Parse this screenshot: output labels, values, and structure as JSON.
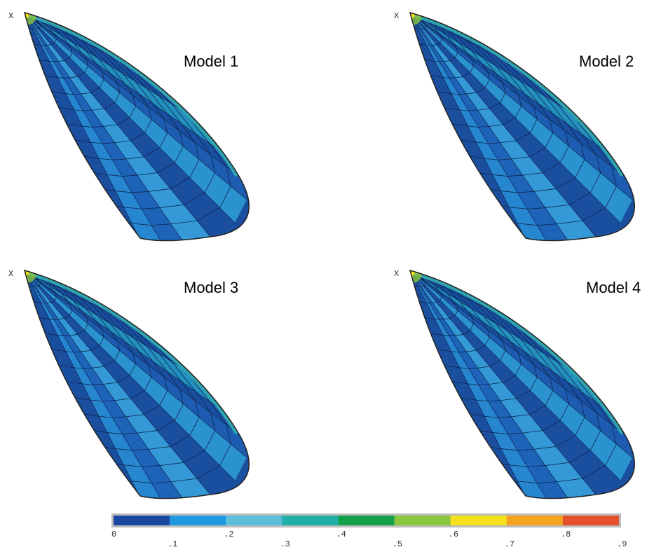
{
  "panels": [
    {
      "title": "Model 1",
      "axis_label": "X"
    },
    {
      "title": "Model 2",
      "axis_label": "X"
    },
    {
      "title": "Model 3",
      "axis_label": "X"
    },
    {
      "title": "Model 4",
      "axis_label": "X"
    }
  ],
  "colorbar": {
    "ticks": [
      0,
      {
        "value": 0.1,
        "label": ".1"
      },
      {
        "value": 0.2,
        "label": ".2"
      },
      {
        "value": 0.3,
        "label": ".3"
      },
      {
        "value": 0.4,
        "label": ".4"
      },
      {
        "value": 0.5,
        "label": ".5"
      },
      {
        "value": 0.6,
        "label": ".6"
      },
      {
        "value": 0.7,
        "label": ".7"
      },
      {
        "value": 0.8,
        "label": ".8"
      },
      {
        "value": 0.9,
        "label": ".9"
      }
    ],
    "colors": [
      "#1a47a0",
      "#1f9ae0",
      "#5bbdd8",
      "#20b0a8",
      "#13a04a",
      "#8cc63f",
      "#f6e21a",
      "#f5a21e",
      "#e4502a"
    ]
  }
}
